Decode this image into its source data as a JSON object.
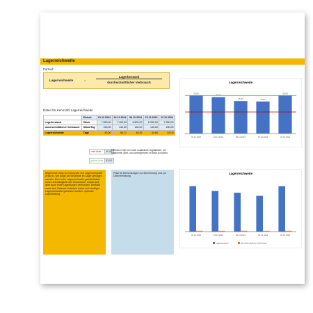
{
  "header": {
    "title": "Lagerreichweite"
  },
  "formula": {
    "label": "Formel:",
    "lhs": "Lagerreichweite",
    "eq": "=",
    "numerator": "Lagerbestand",
    "denominator": "durchschnittlicher Verbrauch"
  },
  "data_section": {
    "title": "Daten für Kennzahl Lagerreichweite",
    "columns": [
      "Einheit",
      "01.12.2024",
      "04.12.2024",
      "08.12.2024",
      "15.12.2024",
      "22.12.2024"
    ],
    "rows": [
      [
        "Lagerbestand",
        "Stück",
        "7.950,00",
        "7.100,00",
        "6.800,00",
        "6.250,00",
        "7.950,00"
      ],
      [
        "durchschnittlicher Verbrauch",
        "Stück/Tag",
        "150,00",
        "140,00",
        "150,00",
        "140,00",
        "150,00"
      ],
      [
        "Lagerreichweite",
        "Tage",
        "53,00",
        "50,71",
        "45,33",
        "44,64",
        "53,00"
      ]
    ]
  },
  "signal_lines": {
    "rows": [
      [
        "rote Linie",
        "30,00"
      ],
      [
        "grüne Linie",
        "53,00"
      ]
    ],
    "note": "Definieren Sie hier noch zusätzliche Signallinien, um bestimmte Ober- und Untergrenzen im Blick zu haben."
  },
  "info_box": {
    "text": "Allgemeine Infos zur Kennzahl: Die Lagerreichweite zeigt an, wie lange die Bestände im Lager genügen werden. Eine hohe Lagerreichweite gewährleistet hohe Lieferfähigkeit und Termintreue. Damit sind aber auch hohe Lagerkosten verbunden. Deshalb muss eine Balance zwischen hoher und niedriger Lagerreichweite gefunden werden: optimale Lagerhaltung."
  },
  "remarks_box": {
    "text": "Platz für Bemerkungen zur Berechnung und zur Datenerhebung"
  },
  "charts": [
    {
      "type": "bar",
      "title": "Lagerreichweite",
      "categories": [
        "01.12.2024",
        "04.12.2024",
        "08.12.2024",
        "15.12.2024",
        "22.12.2024"
      ],
      "values": [
        53,
        50.71,
        45.33,
        44.64,
        53
      ],
      "value_labels": [
        "53,00",
        "50,71",
        "45,33",
        "44,64",
        "53,00"
      ],
      "color": "#4472c4",
      "ylim": [
        0,
        62
      ],
      "lines": [
        {
          "value": 30,
          "color": "#c00000"
        },
        {
          "value": 53,
          "color": "#70ad47"
        }
      ]
    },
    {
      "type": "bar",
      "title": "Lagerreichweite",
      "categories": [
        "01.12.2024",
        "04.12.2024",
        "08.12.2024",
        "15.12.2024",
        "22.12.2024"
      ],
      "ylim": [
        0,
        9000
      ],
      "series": [
        {
          "name": "Lagerbestand",
          "color": "#4472c4",
          "values": [
            7950,
            7100,
            6800,
            6250,
            7950
          ]
        },
        {
          "name": "durchschnittlicher Verbrauch",
          "color": "#ed7d31",
          "values": [
            150,
            140,
            150,
            140,
            150
          ]
        }
      ]
    }
  ]
}
